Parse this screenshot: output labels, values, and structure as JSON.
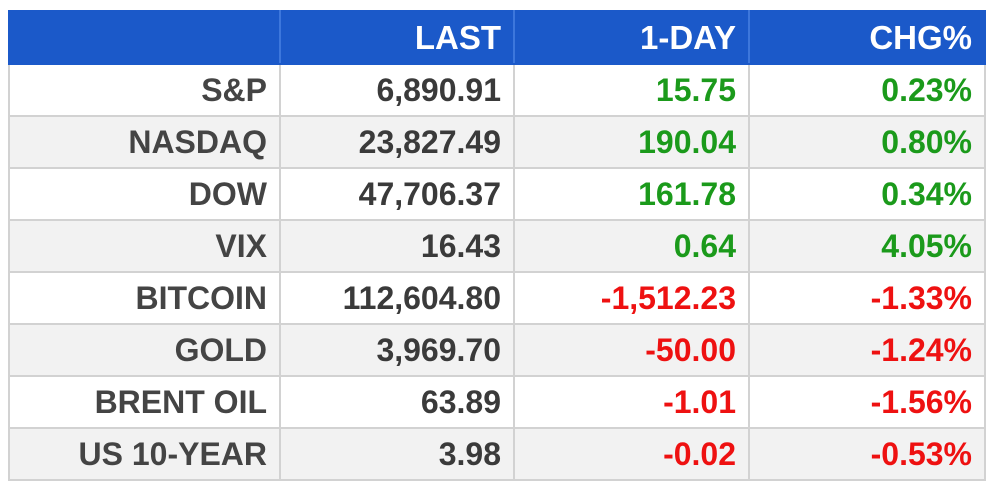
{
  "table": {
    "headers": [
      "",
      "LAST",
      "1-DAY",
      "CHG%"
    ],
    "rows": [
      {
        "name": "S&P",
        "last": "6,890.91",
        "day": "15.75",
        "chg": "0.23%",
        "dir": "pos"
      },
      {
        "name": "NASDAQ",
        "last": "23,827.49",
        "day": "190.04",
        "chg": "0.80%",
        "dir": "pos"
      },
      {
        "name": "DOW",
        "last": "47,706.37",
        "day": "161.78",
        "chg": "0.34%",
        "dir": "pos"
      },
      {
        "name": "VIX",
        "last": "16.43",
        "day": "0.64",
        "chg": "4.05%",
        "dir": "pos"
      },
      {
        "name": "BITCOIN",
        "last": "112,604.80",
        "day": "-1,512.23",
        "chg": "-1.33%",
        "dir": "neg"
      },
      {
        "name": "GOLD",
        "last": "3,969.70",
        "day": "-50.00",
        "chg": "-1.24%",
        "dir": "neg"
      },
      {
        "name": "BRENT OIL",
        "last": "63.89",
        "day": "-1.01",
        "chg": "-1.56%",
        "dir": "neg"
      },
      {
        "name": "US 10-YEAR",
        "last": "3.98",
        "day": "-0.02",
        "chg": "-0.53%",
        "dir": "neg"
      }
    ]
  },
  "colors": {
    "header_bg": "#1b59c9",
    "positive": "#1b9a1b",
    "negative": "#ee1111",
    "stripe": "#f2f2f2"
  }
}
